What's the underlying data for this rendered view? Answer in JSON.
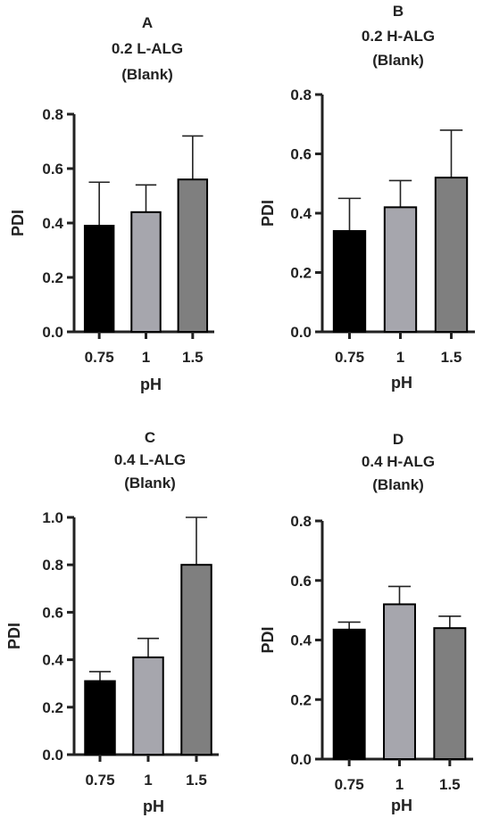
{
  "colors": {
    "ph_0_75": "#000000",
    "ph_1": "#a6a6ad",
    "ph_1_5": "#7f7f7f",
    "axis": "#222222"
  },
  "chart_data": [
    {
      "id": "A",
      "type": "bar",
      "title": [
        "A",
        "0.2 L-ALG",
        "(Blank)"
      ],
      "xlabel": "pH",
      "ylabel": "PDI",
      "categories": [
        "0.75",
        "1",
        "1.5"
      ],
      "values": [
        0.39,
        0.44,
        0.56
      ],
      "error_plus": [
        0.16,
        0.1,
        0.16
      ],
      "ylim": [
        0,
        0.8
      ],
      "yticks": [
        "0.0",
        "0.2",
        "0.4",
        "0.6",
        "0.8"
      ],
      "grid": false,
      "legend": "none"
    },
    {
      "id": "B",
      "type": "bar",
      "title": [
        "B",
        "0.2 H-ALG",
        "(Blank)"
      ],
      "xlabel": "pH",
      "ylabel": "PDI",
      "categories": [
        "0.75",
        "1",
        "1.5"
      ],
      "values": [
        0.34,
        0.42,
        0.52
      ],
      "error_plus": [
        0.11,
        0.09,
        0.16
      ],
      "ylim": [
        0,
        0.8
      ],
      "yticks": [
        "0.0",
        "0.2",
        "0.4",
        "0.6",
        "0.8"
      ],
      "grid": false,
      "legend": "none"
    },
    {
      "id": "C",
      "type": "bar",
      "title": [
        "C",
        "0.4 L-ALG",
        "(Blank)"
      ],
      "xlabel": "pH",
      "ylabel": "PDI",
      "categories": [
        "0.75",
        "1",
        "1.5"
      ],
      "values": [
        0.31,
        0.41,
        0.8
      ],
      "error_plus": [
        0.04,
        0.08,
        0.2
      ],
      "ylim": [
        0,
        1.0
      ],
      "yticks": [
        "0.0",
        "0.2",
        "0.4",
        "0.6",
        "0.8",
        "1.0"
      ],
      "grid": false,
      "legend": "none"
    },
    {
      "id": "D",
      "type": "bar",
      "title": [
        "D",
        "0.4 H-ALG",
        "(Blank)"
      ],
      "xlabel": "pH",
      "ylabel": "PDI",
      "categories": [
        "0.75",
        "1",
        "1.5"
      ],
      "values": [
        0.435,
        0.52,
        0.44
      ],
      "error_plus": [
        0.025,
        0.06,
        0.04
      ],
      "ylim": [
        0,
        0.8
      ],
      "yticks": [
        "0.0",
        "0.2",
        "0.4",
        "0.6",
        "0.8"
      ],
      "grid": false,
      "legend": "none"
    }
  ]
}
